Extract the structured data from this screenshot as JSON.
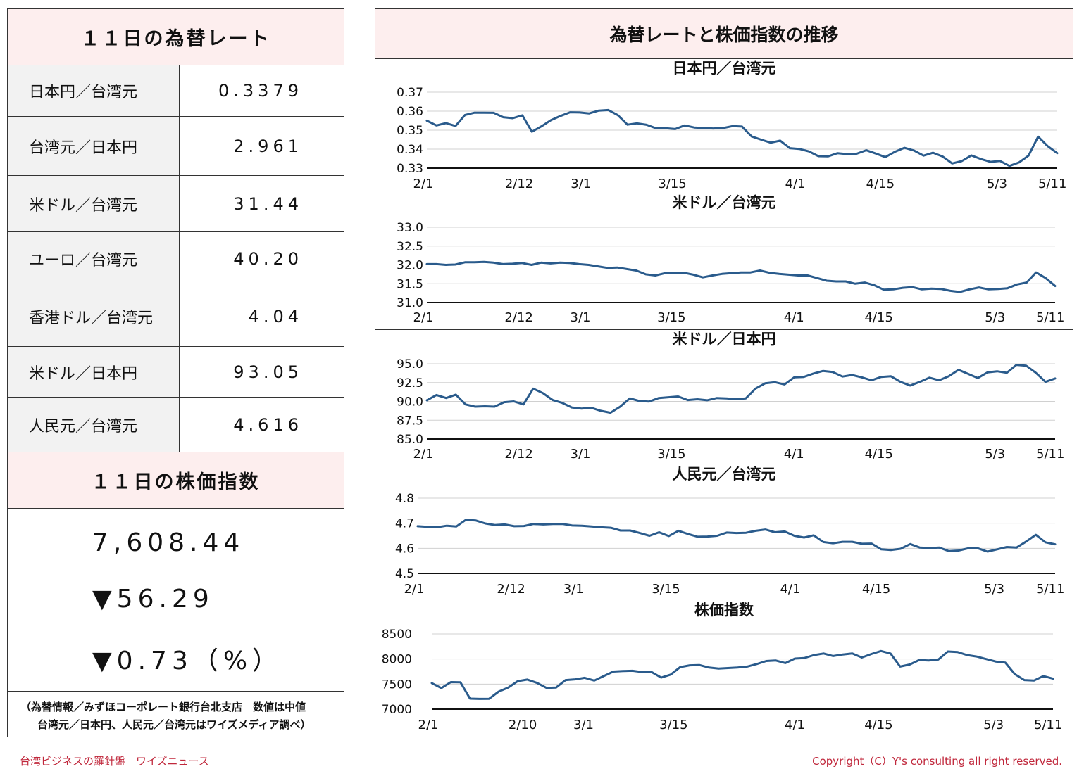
{
  "left": {
    "rates_title": "１１日の為替レート",
    "rates": [
      {
        "label": "日本円／台湾元",
        "value": "0.3379"
      },
      {
        "label": "台湾元／日本円",
        "value": "2.961"
      },
      {
        "label": "米ドル／台湾元",
        "value": "31.44"
      },
      {
        "label": "ユーロ／台湾元",
        "value": "40.20"
      },
      {
        "label": "香港ドル／台湾元",
        "value": "4.04"
      },
      {
        "label": "米ドル／日本円",
        "value": "93.05"
      },
      {
        "label": "人民元／台湾元",
        "value": "4.616"
      }
    ],
    "stock_title": "１１日の株価指数",
    "stock_value": "7,608.44",
    "stock_change": "▼56.29",
    "stock_change_pct": "▼0.73（%）",
    "source_line1": "（為替情報／みずほコーポレート銀行台北支店　数値は中値",
    "source_line2": "台湾元／日本円、人民元／台湾元はワイズメディア調べ）"
  },
  "right": {
    "title": "為替レートと株価指数の推移"
  },
  "footer": {
    "left": "台湾ビジネスの羅針盤　ワイズニュース",
    "right": "Copyright（C）Y's consulting all right reserved."
  },
  "colors": {
    "line": "#2a5b8c",
    "header_bg": "#fdeeee",
    "label_bg": "#f2f2f2",
    "footer_text": "#c0283c"
  },
  "chart_data": [
    {
      "type": "line",
      "title": "日本円／台湾元",
      "ylim": [
        0.33,
        0.37
      ],
      "yticks": [
        "0.37",
        "0.36",
        "0.35",
        "0.34",
        "0.33"
      ],
      "xticks": [
        "2/1",
        "2/12",
        "3/1",
        "3/15",
        "4/1",
        "4/15",
        "5/3",
        "5/11"
      ],
      "grid": true,
      "values": [
        0.355,
        0.3525,
        0.3537,
        0.3522,
        0.358,
        0.3592,
        0.3592,
        0.3591,
        0.3568,
        0.3563,
        0.3578,
        0.3492,
        0.352,
        0.3553,
        0.3575,
        0.3594,
        0.3593,
        0.3588,
        0.3603,
        0.3606,
        0.3579,
        0.3529,
        0.3536,
        0.3528,
        0.351,
        0.351,
        0.3506,
        0.3525,
        0.3514,
        0.3511,
        0.3509,
        0.3511,
        0.3521,
        0.3519,
        0.3467,
        0.345,
        0.3434,
        0.3445,
        0.3405,
        0.3401,
        0.3388,
        0.3363,
        0.3362,
        0.3379,
        0.3374,
        0.3376,
        0.3394,
        0.3377,
        0.3358,
        0.3386,
        0.3407,
        0.3393,
        0.3366,
        0.3381,
        0.3361,
        0.3325,
        0.3337,
        0.3367,
        0.3348,
        0.3333,
        0.3338,
        0.3312,
        0.333,
        0.3366,
        0.3466,
        0.3416,
        0.3379
      ]
    },
    {
      "type": "line",
      "title": "米ドル／台湾元",
      "ylim": [
        31.0,
        33.0
      ],
      "yticks": [
        "33.0",
        "32.5",
        "32.0",
        "31.5",
        "31.0"
      ],
      "xticks": [
        "2/1",
        "2/12",
        "3/1",
        "3/15",
        "4/1",
        "4/15",
        "5/3",
        "5/11"
      ],
      "grid": true,
      "values": [
        32.02,
        32.02,
        32.0,
        32.01,
        32.07,
        32.07,
        32.08,
        32.06,
        32.02,
        32.03,
        32.05,
        32.0,
        32.06,
        32.04,
        32.06,
        32.05,
        32.02,
        32.0,
        31.96,
        31.92,
        31.93,
        31.89,
        31.85,
        31.75,
        31.72,
        31.78,
        31.78,
        31.79,
        31.74,
        31.67,
        31.72,
        31.76,
        31.78,
        31.8,
        31.8,
        31.85,
        31.79,
        31.76,
        31.74,
        31.72,
        31.72,
        31.65,
        31.58,
        31.56,
        31.56,
        31.5,
        31.53,
        31.46,
        31.34,
        31.35,
        31.39,
        31.41,
        31.35,
        31.37,
        31.36,
        31.31,
        31.28,
        31.35,
        31.4,
        31.35,
        31.36,
        31.38,
        31.48,
        31.53,
        31.8,
        31.65,
        31.44
      ]
    },
    {
      "type": "line",
      "title": "米ドル／日本円",
      "ylim": [
        85.0,
        95.0
      ],
      "yticks": [
        "95.0",
        "92.5",
        "90.0",
        "87.5",
        "85.0"
      ],
      "xticks": [
        "2/1",
        "2/12",
        "3/1",
        "3/15",
        "4/1",
        "4/15",
        "5/3",
        "5/11"
      ],
      "grid": true,
      "values": [
        90.15,
        90.85,
        90.45,
        90.9,
        89.6,
        89.3,
        89.35,
        89.3,
        89.9,
        90.0,
        89.6,
        91.7,
        91.1,
        90.2,
        89.8,
        89.2,
        89.05,
        89.15,
        88.75,
        88.5,
        89.3,
        90.4,
        90.05,
        89.98,
        90.45,
        90.55,
        90.65,
        90.18,
        90.28,
        90.15,
        90.45,
        90.4,
        90.3,
        90.4,
        91.7,
        92.4,
        92.55,
        92.25,
        93.2,
        93.25,
        93.7,
        94.05,
        93.9,
        93.3,
        93.5,
        93.2,
        92.8,
        93.25,
        93.35,
        92.6,
        92.1,
        92.6,
        93.15,
        92.8,
        93.35,
        94.2,
        93.65,
        93.1,
        93.85,
        94.0,
        93.8,
        94.85,
        94.75,
        93.8,
        92.6,
        93.05
      ]
    },
    {
      "type": "line",
      "title": "人民元／台湾元",
      "ylim": [
        4.5,
        4.8
      ],
      "yticks": [
        "4.8",
        "4.7",
        "4.6",
        "4.5"
      ],
      "xticks": [
        "2/1",
        "2/12",
        "3/1",
        "3/15",
        "4/1",
        "4/15",
        "5/3",
        "5/11"
      ],
      "grid": true,
      "values": [
        4.688,
        4.686,
        4.684,
        4.69,
        4.687,
        4.714,
        4.711,
        4.699,
        4.693,
        4.695,
        4.688,
        4.689,
        4.697,
        4.695,
        4.697,
        4.697,
        4.691,
        4.69,
        4.687,
        4.684,
        4.682,
        4.671,
        4.671,
        4.661,
        4.65,
        4.664,
        4.649,
        4.67,
        4.657,
        4.646,
        4.647,
        4.65,
        4.663,
        4.661,
        4.662,
        4.67,
        4.675,
        4.664,
        4.667,
        4.65,
        4.643,
        4.652,
        4.625,
        4.62,
        4.626,
        4.626,
        4.618,
        4.619,
        4.596,
        4.593,
        4.598,
        4.617,
        4.603,
        4.601,
        4.603,
        4.589,
        4.591,
        4.6,
        4.6,
        4.587,
        4.596,
        4.605,
        4.603,
        4.627,
        4.654,
        4.624,
        4.616
      ]
    },
    {
      "type": "line",
      "title": "株価指数",
      "ylim": [
        7000,
        8500
      ],
      "yticks": [
        "8500",
        "8000",
        "7500",
        "7000"
      ],
      "xticks": [
        "2/1",
        "2/10",
        "3/1",
        "3/15",
        "4/1",
        "4/15",
        "5/3",
        "5/11"
      ],
      "grid": true,
      "values": [
        7520,
        7420,
        7540,
        7535,
        7210,
        7205,
        7208,
        7350,
        7430,
        7560,
        7590,
        7525,
        7425,
        7430,
        7580,
        7595,
        7625,
        7570,
        7660,
        7750,
        7760,
        7765,
        7740,
        7740,
        7630,
        7690,
        7840,
        7875,
        7880,
        7830,
        7810,
        7820,
        7830,
        7850,
        7900,
        7960,
        7970,
        7920,
        8010,
        8020,
        8080,
        8110,
        8060,
        8090,
        8110,
        8030,
        8100,
        8160,
        8110,
        7850,
        7890,
        7980,
        7970,
        7990,
        8150,
        8140,
        8080,
        8050,
        8000,
        7950,
        7930,
        7700,
        7580,
        7570,
        7660,
        7608
      ]
    }
  ]
}
